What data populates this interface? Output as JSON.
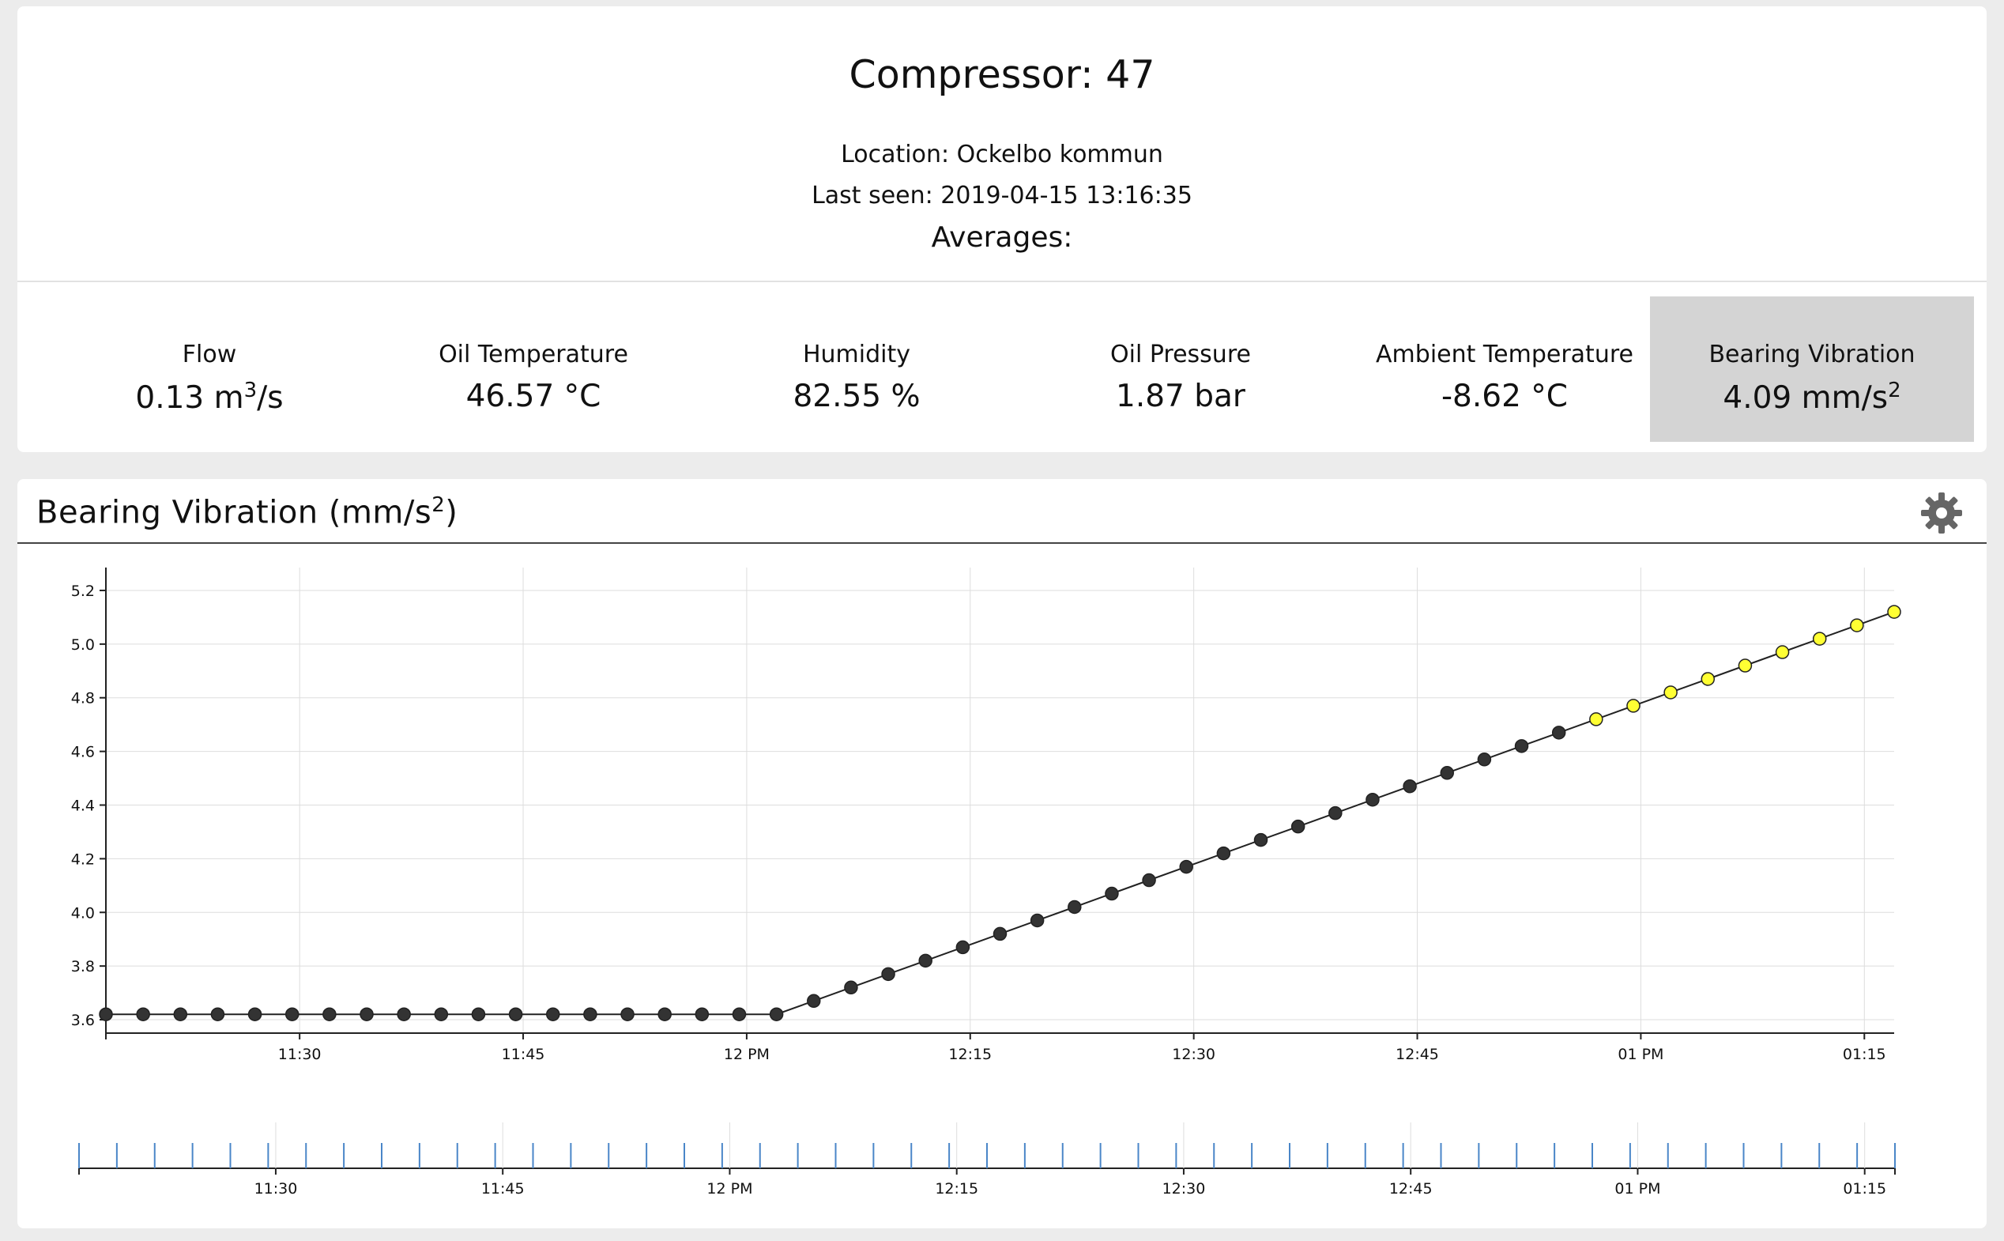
{
  "header": {
    "title": "Compressor: 47",
    "location": "Location: Ockelbo kommun",
    "last_seen": "Last seen: 2019-04-15 13:16:35",
    "averages_label": "Averages:"
  },
  "metrics": [
    {
      "label": "Flow",
      "value": "0.13 m",
      "sup": "3",
      "suffix": "/s"
    },
    {
      "label": "Oil Temperature",
      "value": "46.57 °C",
      "sup": "",
      "suffix": ""
    },
    {
      "label": "Humidity",
      "value": "82.55 %",
      "sup": "",
      "suffix": ""
    },
    {
      "label": "Oil Pressure",
      "value": "1.87 bar",
      "sup": "",
      "suffix": ""
    },
    {
      "label": "Ambient Temperature",
      "value": "-8.62 °C",
      "sup": "",
      "suffix": ""
    },
    {
      "label": "Bearing Vibration",
      "value": "4.09 mm/s",
      "sup": "2",
      "suffix": "",
      "active": true
    }
  ],
  "chart_panel": {
    "title": "Bearing Vibration (mm/s",
    "title_sup": "2",
    "title_suffix": ")",
    "settings_icon": "gear-icon"
  },
  "chart_data": {
    "type": "line",
    "title": "Bearing Vibration (mm/s2)",
    "xlabel": "",
    "ylabel": "",
    "x_range": [
      "11:17",
      "13:17"
    ],
    "ylim": [
      3.55,
      5.25
    ],
    "grid": true,
    "yticks": [
      3.6,
      3.8,
      4.0,
      4.2,
      4.4,
      4.6,
      4.8,
      5.0,
      5.2
    ],
    "ytick_labels": [
      "3.6",
      "3.8",
      "4.0",
      "4.2",
      "4.4",
      "4.6",
      "4.8",
      "5.0",
      "5.2"
    ],
    "xticks": [
      "11:30",
      "11:45",
      "12:00",
      "12:15",
      "12:30",
      "12:45",
      "13:00",
      "13:15"
    ],
    "xtick_labels": [
      "11:30",
      "11:45",
      "12 PM",
      "12:15",
      "12:30",
      "12:45",
      "01 PM",
      "01:15"
    ],
    "colors": {
      "normal": "#333333",
      "highlight": "#ffff33",
      "line": "#222222",
      "grid": "#dddddd",
      "brush_tick": "#4a86c8"
    },
    "series": [
      {
        "x": [
          "11:17",
          "11:19:30",
          "11:22",
          "11:24:30",
          "11:27",
          "11:29:30",
          "11:32",
          "11:34:30",
          "11:37",
          "11:39:30",
          "11:42",
          "11:44:30",
          "11:47",
          "11:49:30",
          "11:52",
          "11:54:30",
          "11:57",
          "11:59:30",
          "12:02",
          "12:04:30",
          "12:07",
          "12:09:30",
          "12:12",
          "12:14:30",
          "12:17",
          "12:19:30",
          "12:22",
          "12:24:30",
          "12:27",
          "12:29:30",
          "12:32",
          "12:34:30",
          "12:37",
          "12:39:30",
          "12:42",
          "12:44:30",
          "12:47",
          "12:49:30",
          "12:52",
          "12:54:30",
          "12:57",
          "12:59:30",
          "13:02",
          "13:04:30",
          "13:07",
          "13:09:30",
          "13:12",
          "13:14:30",
          "13:17"
        ],
        "values": [
          3.62,
          3.62,
          3.62,
          3.62,
          3.62,
          3.62,
          3.62,
          3.62,
          3.62,
          3.62,
          3.62,
          3.62,
          3.62,
          3.62,
          3.62,
          3.62,
          3.62,
          3.62,
          3.62,
          3.67,
          3.72,
          3.77,
          3.82,
          3.87,
          3.92,
          3.97,
          4.02,
          4.07,
          4.12,
          4.17,
          4.22,
          4.27,
          4.32,
          4.37,
          4.42,
          4.47,
          4.52,
          4.57,
          4.62,
          4.67,
          4.72,
          4.77,
          4.82,
          4.87,
          4.92,
          4.97,
          5.02,
          5.07,
          5.12
        ],
        "highlight_from_index": 40
      }
    ],
    "brush": {
      "xtick_labels": [
        "11:30",
        "11:45",
        "12 PM",
        "12:15",
        "12:30",
        "12:45",
        "01 PM",
        "01:15"
      ]
    }
  }
}
